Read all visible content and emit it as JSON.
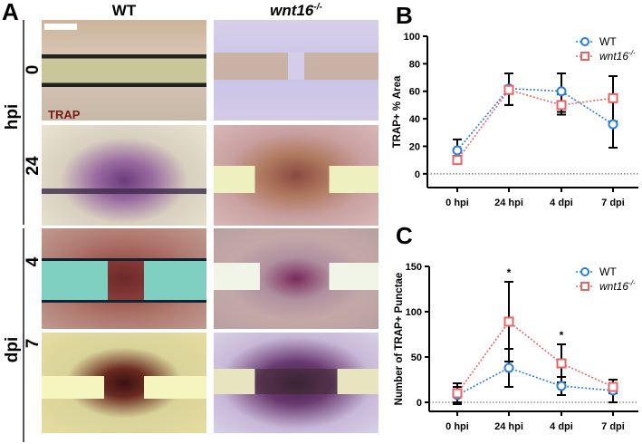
{
  "panel_a": {
    "letter": "A",
    "col_wt": "WT",
    "col_mut": "wnt16",
    "col_mut_sup": "-/-",
    "group_hpi": "hpi",
    "group_dpi": "dpi",
    "rows": [
      "0",
      "24",
      "4",
      "7"
    ],
    "stain_label": "TRAP"
  },
  "colors": {
    "wt": "#2a7de1",
    "mut": "#e86464"
  },
  "chart_data": [
    {
      "panel": "B",
      "type": "line",
      "ylabel": "TRAP+ % Area",
      "categories": [
        "0 hpi",
        "24 hpi",
        "4 dpi",
        "7 dpi"
      ],
      "ylim": [
        -10,
        100
      ],
      "yticks": [
        0,
        20,
        40,
        60,
        80,
        100
      ],
      "legend": "top-right",
      "reference_line": 0,
      "series": [
        {
          "name": "WT",
          "values": [
            17,
            62,
            60,
            36
          ],
          "err_low": [
            10,
            50,
            45,
            19
          ],
          "err_high": [
            25,
            73,
            73,
            54
          ]
        },
        {
          "name": "wnt16-/-",
          "values": [
            10,
            61,
            50,
            55
          ],
          "err_low": [
            8,
            50,
            43,
            38
          ],
          "err_high": [
            13,
            73,
            58,
            71
          ]
        }
      ],
      "annotations": []
    },
    {
      "panel": "C",
      "type": "line",
      "ylabel": "Number of TRAP+ Punctae",
      "categories": [
        "0 hpi",
        "24 hpi",
        "4 dpi",
        "7 dpi"
      ],
      "ylim": [
        -10,
        150
      ],
      "yticks": [
        0,
        50,
        100,
        150
      ],
      "legend": "top-right",
      "reference_line": 0,
      "series": [
        {
          "name": "WT",
          "values": [
            8,
            38,
            18,
            13
          ],
          "err_low": [
            0,
            17,
            8,
            0
          ],
          "err_high": [
            17,
            59,
            28,
            25
          ]
        },
        {
          "name": "wnt16-/-",
          "values": [
            10,
            89,
            43,
            17
          ],
          "err_low": [
            -2,
            45,
            22,
            10
          ],
          "err_high": [
            21,
            133,
            64,
            25
          ]
        }
      ],
      "annotations": [
        {
          "category": "24 hpi",
          "text": "*"
        },
        {
          "category": "4 dpi",
          "text": "*"
        }
      ]
    }
  ]
}
